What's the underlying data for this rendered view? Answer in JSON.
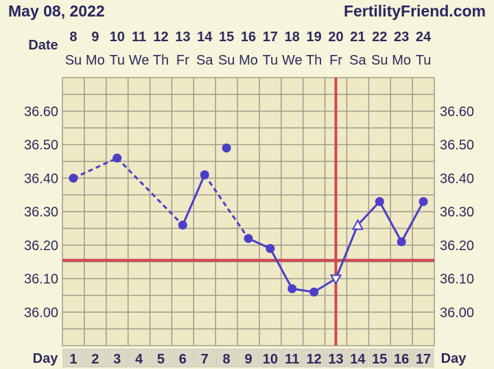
{
  "header": {
    "title": "May 08, 2022",
    "brand": "FertilityFriend.com"
  },
  "chart_data": {
    "type": "line",
    "row_labels": {
      "date": "Date",
      "day": "Day"
    },
    "dates": [
      "8",
      "9",
      "10",
      "11",
      "12",
      "13",
      "14",
      "15",
      "16",
      "17",
      "18",
      "19",
      "20",
      "21",
      "22",
      "23",
      "24"
    ],
    "weekdays": [
      "Su",
      "Mo",
      "Tu",
      "We",
      "Th",
      "Fr",
      "Sa",
      "Su",
      "Mo",
      "Tu",
      "We",
      "Th",
      "Fr",
      "Sa",
      "Su",
      "Mo",
      "Tu"
    ],
    "cycle_days": [
      "1",
      "2",
      "3",
      "4",
      "5",
      "6",
      "7",
      "8",
      "9",
      "10",
      "11",
      "12",
      "13",
      "14",
      "15",
      "16",
      "17"
    ],
    "y_ticks": [
      "36.00",
      "36.10",
      "36.20",
      "36.30",
      "36.40",
      "36.50",
      "36.60"
    ],
    "ylim": [
      35.9,
      36.7
    ],
    "temps": [
      36.4,
      null,
      36.46,
      null,
      null,
      36.26,
      36.41,
      36.49,
      36.22,
      36.19,
      36.07,
      36.06,
      36.1,
      36.26,
      36.33,
      36.21,
      36.33
    ],
    "point_styles": [
      "dot",
      null,
      "dot",
      null,
      null,
      "dot",
      "dot",
      "dot",
      "dot",
      "dot",
      "dot",
      "dot",
      "open-triangle-down",
      "open-triangle-up",
      "dot",
      "dot",
      "dot"
    ],
    "segments": [
      {
        "from": 1,
        "to": 3,
        "style": "dashed"
      },
      {
        "from": 3,
        "to": 6,
        "style": "dashed"
      },
      {
        "from": 6,
        "to": 7,
        "style": "solid"
      },
      {
        "from": 7,
        "to": 9,
        "style": "dashed"
      },
      {
        "from": 9,
        "to": 10,
        "style": "solid"
      },
      {
        "from": 10,
        "to": 11,
        "style": "solid"
      },
      {
        "from": 11,
        "to": 12,
        "style": "solid"
      },
      {
        "from": 12,
        "to": 13,
        "style": "solid"
      },
      {
        "from": 13,
        "to": 14,
        "style": "solid"
      },
      {
        "from": 14,
        "to": 15,
        "style": "solid"
      },
      {
        "from": 15,
        "to": 16,
        "style": "solid"
      },
      {
        "from": 16,
        "to": 17,
        "style": "solid"
      }
    ],
    "coverline": 36.155,
    "ovulation_day": 13,
    "colors": {
      "background": "#f7f4dc",
      "plot": "#efe9c6",
      "grid": "#9f9c8a",
      "line": "#4b3fc7",
      "reference": "#d0484d",
      "text": "#2e2a5c",
      "day_cell": "#dcd8c6"
    }
  }
}
